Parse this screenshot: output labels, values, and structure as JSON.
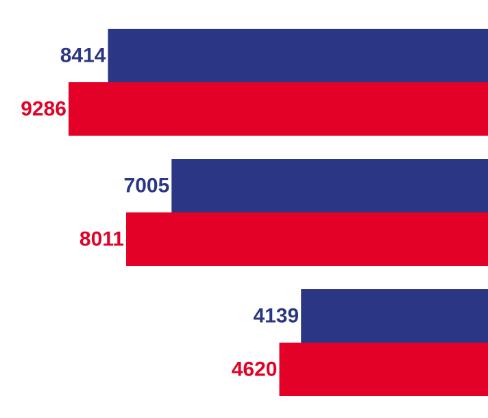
{
  "chart_data": {
    "type": "bar",
    "orientation": "horizontal",
    "categories": [
      "",
      "",
      ""
    ],
    "series": [
      {
        "values": [
          8414,
          7005,
          4139
        ],
        "color": "#2b3784"
      },
      {
        "values": [
          9286,
          8011,
          4620
        ],
        "color": "#e30127"
      }
    ],
    "value_labels": true,
    "bar_direction": "right-anchored, extending left",
    "grid": false,
    "legend": "none",
    "xlabel": "",
    "ylabel": ""
  }
}
